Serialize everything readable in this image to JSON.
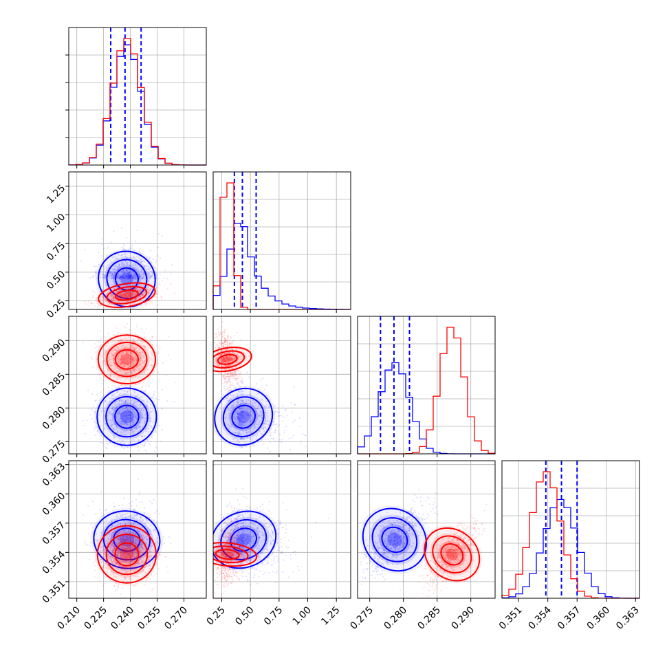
{
  "chart_data": {
    "type": "corner",
    "grid": true,
    "colors": {
      "blue": "#0000ff",
      "red": "#ff0000"
    },
    "parameters": [
      {
        "ticks": [
          0.21,
          0.225,
          0.24,
          0.255,
          0.27
        ],
        "tick_labels": [
          "0.210",
          "0.225",
          "0.240",
          "0.255",
          "0.270"
        ],
        "range": [
          0.2055,
          0.2825
        ]
      },
      {
        "ticks": [
          0.25,
          0.5,
          0.75,
          1.0,
          1.25
        ],
        "tick_labels": [
          "0.25",
          "0.50",
          "0.75",
          "1.00",
          "1.25"
        ],
        "range": [
          0.175,
          1.375
        ]
      },
      {
        "ticks": [
          0.275,
          0.28,
          0.285,
          0.29
        ],
        "tick_labels": [
          "0.275",
          "0.280",
          "0.285",
          "0.290"
        ],
        "range": [
          0.2732,
          0.2936
        ]
      },
      {
        "ticks": [
          0.351,
          0.354,
          0.357,
          0.36,
          0.363
        ],
        "tick_labels": [
          "0.351",
          "0.354",
          "0.357",
          "0.360",
          "0.363"
        ],
        "range": [
          0.3493,
          0.3634
        ]
      }
    ],
    "series": [
      {
        "color": "blue",
        "mean": [
          0.238,
          0.44,
          0.2787,
          0.3553
        ],
        "std": [
          0.008,
          0.12,
          0.0022,
          0.0017
        ],
        "quantiles": [
          [
            0.229,
            0.237,
            0.246
          ],
          [
            0.36,
            0.43,
            0.55
          ],
          [
            0.2766,
            0.2786,
            0.2809
          ],
          [
            0.3538,
            0.3554,
            0.357
          ]
        ],
        "hist_max": [
          0.95,
          0.68,
          0.72,
          0.78
        ]
      },
      {
        "color": "red",
        "mean": [
          0.238,
          0.3,
          0.2872,
          0.3538
        ],
        "std": [
          0.008,
          0.05,
          0.0018,
          0.0015
        ],
        "hist_max": [
          1.0,
          1.0,
          1.0,
          1.0
        ]
      }
    ]
  }
}
